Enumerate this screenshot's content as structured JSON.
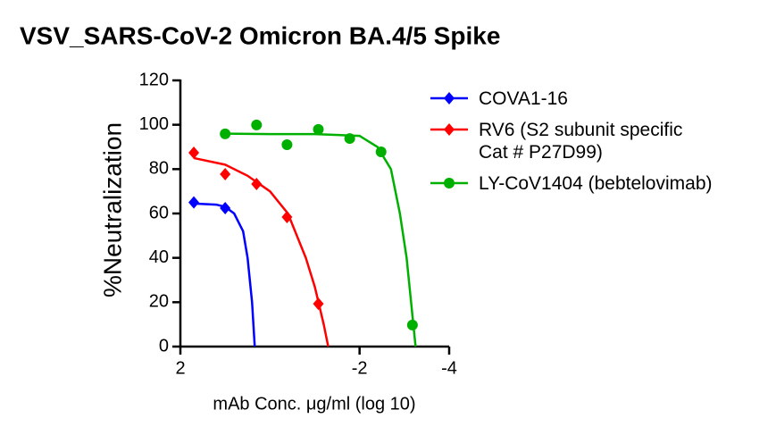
{
  "chart_data": {
    "type": "dose-response",
    "title": "VSV_SARS-CoV-2 Omicron BA.4/5 Spike",
    "x_label": "mAb Conc. μg/ml (log 10)",
    "y_label": "%Neutralization",
    "xlim": [
      2,
      -4
    ],
    "xticks": [
      2,
      -2,
      -4
    ],
    "ylim": [
      0,
      120
    ],
    "yticks": [
      0,
      20,
      40,
      60,
      80,
      100,
      120
    ],
    "legend": "right",
    "series": [
      {
        "name": "COVA1-16",
        "color": "#0000ff",
        "marker": "diamond",
        "x": [
          1.7,
          1.0
        ],
        "values": [
          65,
          62.4
        ],
        "fit_x": [
          1.7,
          1.2,
          1.0,
          0.8,
          0.6,
          0.5,
          0.4,
          0.34
        ],
        "fit_values": [
          64.5,
          64,
          63,
          60,
          52,
          40,
          20,
          0
        ]
      },
      {
        "name": "RV6 (S2 subunit specific\nCat # P27D99)",
        "color": "#ff0000",
        "marker": "diamond",
        "x": [
          1.7,
          1.0,
          0.3,
          -0.38,
          -1.08
        ],
        "values": [
          87.4,
          77.7,
          73.3,
          58.4,
          19.3
        ],
        "fit_x": [
          1.7,
          1.0,
          0.5,
          0,
          -0.4,
          -0.8,
          -1.0,
          -1.2,
          -1.3
        ],
        "fit_values": [
          85,
          82,
          77,
          70,
          60,
          40,
          27,
          10,
          0
        ]
      },
      {
        "name": "LY-CoV1404 (bebtelovimab)",
        "color": "#00b000",
        "marker": "circle",
        "x": [
          1.0,
          0.3,
          -0.38,
          -1.08,
          -1.78,
          -2.48,
          -3.18
        ],
        "values": [
          95.9,
          99.9,
          91,
          97.9,
          93.8,
          87.8,
          9.7
        ],
        "fit_x": [
          1.0,
          0,
          -1,
          -2,
          -2.4,
          -2.7,
          -2.9,
          -3.05,
          -3.2,
          -3.25
        ],
        "fit_values": [
          96,
          95.8,
          95.8,
          95,
          90,
          80,
          60,
          40,
          10,
          0
        ]
      }
    ]
  }
}
